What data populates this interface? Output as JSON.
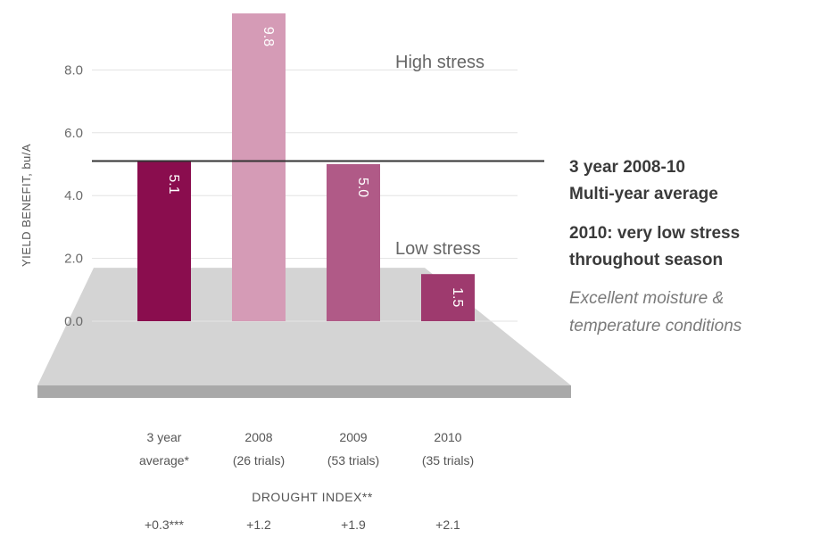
{
  "chart_data": {
    "type": "bar",
    "ylabel": "YIELD BENEFIT, bu/A",
    "yticks": [
      "0.0",
      "2.0",
      "4.0",
      "6.0",
      "8.0"
    ],
    "ytick_values": [
      0,
      2,
      4,
      6,
      8
    ],
    "ylim": [
      0,
      9.8
    ],
    "grid": true,
    "categories": [
      {
        "line1": "3 year",
        "line2": "average*"
      },
      {
        "line1": "2008",
        "line2": "(26 trials)"
      },
      {
        "line1": "2009",
        "line2": "(53 trials)"
      },
      {
        "line1": "2010",
        "line2": "(35 trials)"
      }
    ],
    "values": [
      5.1,
      9.8,
      5.0,
      1.5
    ],
    "value_labels": [
      "5.1",
      "9.8",
      "5.0",
      "1.5"
    ],
    "bar_colors": [
      "#8a0d4e",
      "#d59bb6",
      "#b05a87",
      "#9e3a6e"
    ],
    "reference_line": {
      "value": 5.1
    },
    "zones": {
      "high": "High stress",
      "low": "Low stress",
      "low_zone_top": 1.7
    },
    "drought_index": {
      "label": "DROUGHT INDEX**",
      "values": [
        "+0.3***",
        "+1.2",
        "+1.9",
        "+2.1"
      ]
    }
  },
  "annotations": {
    "avg_line1": "3 year 2008-10",
    "avg_line2": "Multi-year average",
    "stress_line1": "2010: very low stress",
    "stress_line2": "throughout season",
    "cond_line1": "Excellent moisture &",
    "cond_line2": "temperature conditions"
  },
  "colors": {
    "zone_fill": "#d4d4d4",
    "zone_base": "#a9a9a9",
    "gridline": "#e3e3e3",
    "ref_line": "#333333"
  }
}
